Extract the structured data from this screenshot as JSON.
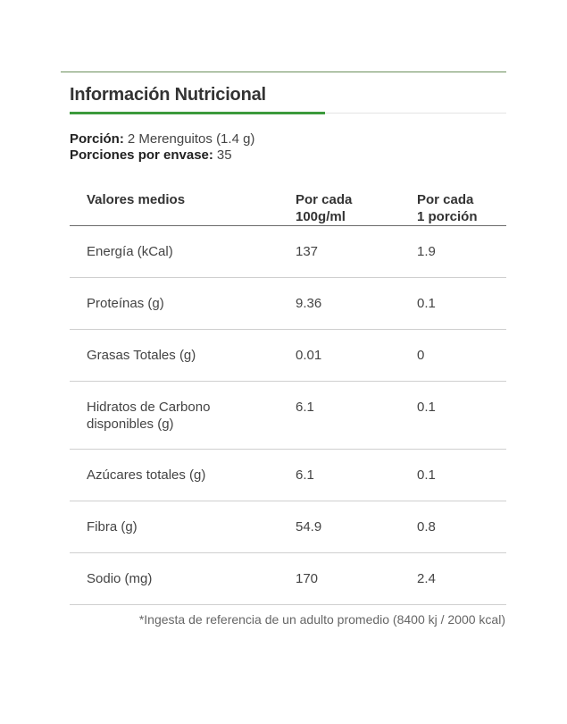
{
  "title": "Información Nutricional",
  "portion": {
    "label": "Porción:",
    "value": "2 Merenguitos (1.4 g)",
    "servings_label": "Porciones por envase:",
    "servings_value": "35"
  },
  "table": {
    "headers": {
      "col1": "Valores medios",
      "col2_line1": "Por cada",
      "col2_line2": "100g/ml",
      "col3_line1": "Por cada",
      "col3_line2": "1 porción"
    },
    "rows": [
      {
        "name": "Energía (kCal)",
        "per100": "137",
        "perPortion": "1.9"
      },
      {
        "name": "Proteínas (g)",
        "per100": "9.36",
        "perPortion": "0.1"
      },
      {
        "name": "Grasas Totales (g)",
        "per100": "0.01",
        "perPortion": "0"
      },
      {
        "name_line1": "Hidratos de Carbono",
        "name_line2": "disponibles (g)",
        "per100": "6.1",
        "perPortion": "0.1"
      },
      {
        "name": "Azúcares totales (g)",
        "per100": "6.1",
        "perPortion": "0.1"
      },
      {
        "name": "Fibra (g)",
        "per100": "54.9",
        "perPortion": "0.8"
      },
      {
        "name": "Sodio (mg)",
        "per100": "170",
        "perPortion": "2.4"
      }
    ]
  },
  "footnote": "*Ingesta de referencia de un adulto promedio (8400 kj / 2000 kcal)",
  "colors": {
    "accent": "#3c9a3c",
    "rule": "#6a8f5a"
  }
}
